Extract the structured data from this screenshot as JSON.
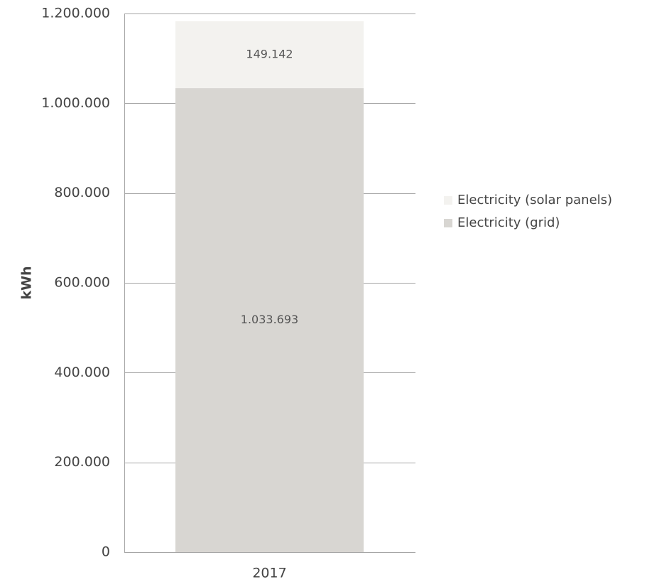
{
  "chart_data": {
    "type": "bar",
    "stacked": true,
    "categories": [
      "2017"
    ],
    "series": [
      {
        "name": "Electricity (grid)",
        "values": [
          1033693
        ],
        "label": "1.033.693",
        "color": "#d8d6d2"
      },
      {
        "name": "Electricity (solar panels)",
        "values": [
          149142
        ],
        "label": "149.142",
        "color": "#f3f2ef"
      }
    ],
    "ylabel": "kWh",
    "xlabel": "",
    "ylim": [
      0,
      1200000
    ],
    "yticks": [
      0,
      200000,
      400000,
      600000,
      800000,
      1000000,
      1200000
    ],
    "ytick_labels": [
      "0",
      "200.000",
      "400.000",
      "600.000",
      "800.000",
      "1.000.000",
      "1.200.000"
    ],
    "legend": {
      "position": "right",
      "entries": [
        "Electricity (solar panels)",
        "Electricity (grid)"
      ],
      "colors": [
        "#f3f2ef",
        "#d8d6d2"
      ]
    },
    "grid": true,
    "gridline_color": "#a6a6a6"
  }
}
